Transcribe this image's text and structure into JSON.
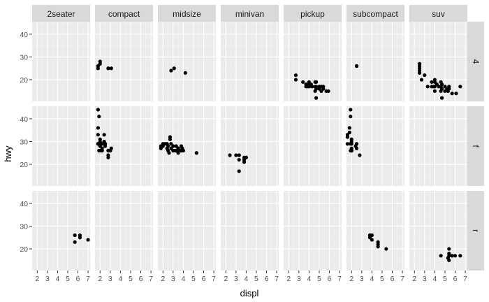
{
  "chart_data": {
    "type": "scatter",
    "facet": "grid",
    "xlabel": "displ",
    "ylabel": "hwy",
    "xlim": [
      1.5,
      7.2
    ],
    "ylim": [
      10.5,
      45.5
    ],
    "x_ticks": [
      2,
      3,
      4,
      5,
      6,
      7
    ],
    "y_ticks": [
      20,
      30,
      40
    ],
    "grid": true,
    "columns": [
      "2seater",
      "compact",
      "midsize",
      "minivan",
      "pickup",
      "subcompact",
      "suv"
    ],
    "rows": [
      "4",
      "f",
      "r"
    ],
    "panels": [
      {
        "row": "4",
        "col": "compact",
        "points": [
          [
            1.8,
            26
          ],
          [
            1.8,
            25
          ],
          [
            2.0,
            28
          ],
          [
            2.0,
            27
          ],
          [
            2.8,
            25
          ],
          [
            2.8,
            25
          ],
          [
            3.1,
            25
          ]
        ]
      },
      {
        "row": "4",
        "col": "midsize",
        "points": [
          [
            2.8,
            24
          ],
          [
            3.1,
            25
          ],
          [
            4.2,
            23
          ]
        ]
      },
      {
        "row": "4",
        "col": "pickup",
        "points": [
          [
            2.7,
            20
          ],
          [
            2.7,
            22
          ],
          [
            3.4,
            19
          ],
          [
            3.7,
            18
          ],
          [
            3.7,
            17
          ],
          [
            3.9,
            17
          ],
          [
            3.9,
            18
          ],
          [
            4.0,
            17
          ],
          [
            4.0,
            18
          ],
          [
            4.0,
            19
          ],
          [
            4.2,
            18
          ],
          [
            4.3,
            17
          ],
          [
            4.6,
            19
          ],
          [
            4.6,
            17
          ],
          [
            4.7,
            17
          ],
          [
            4.7,
            16
          ],
          [
            4.7,
            19
          ],
          [
            4.7,
            12
          ],
          [
            5.2,
            17
          ],
          [
            5.2,
            15
          ],
          [
            5.4,
            17
          ],
          [
            5.7,
            15
          ],
          [
            5.9,
            15
          ],
          [
            4.6,
            15
          ],
          [
            5.0,
            17
          ],
          [
            5.0,
            16
          ],
          [
            5.4,
            16
          ]
        ]
      },
      {
        "row": "4",
        "col": "subcompact",
        "points": [
          [
            2.5,
            26
          ],
          [
            2.5,
            26
          ]
        ]
      },
      {
        "row": "4",
        "col": "suv",
        "points": [
          [
            2.5,
            25
          ],
          [
            2.5,
            24
          ],
          [
            2.5,
            27
          ],
          [
            2.5,
            26
          ],
          [
            2.5,
            23
          ],
          [
            2.7,
            20
          ],
          [
            3.0,
            22
          ],
          [
            3.3,
            17
          ],
          [
            3.7,
            19
          ],
          [
            3.7,
            17
          ],
          [
            3.9,
            17
          ],
          [
            4.0,
            20
          ],
          [
            4.0,
            19
          ],
          [
            4.0,
            17
          ],
          [
            4.2,
            18
          ],
          [
            4.4,
            17
          ],
          [
            4.6,
            19
          ],
          [
            4.6,
            15
          ],
          [
            4.7,
            18
          ],
          [
            4.7,
            16
          ],
          [
            4.7,
            12
          ],
          [
            5.0,
            17
          ],
          [
            5.2,
            16
          ],
          [
            5.3,
            15
          ],
          [
            5.4,
            17
          ],
          [
            5.4,
            16
          ],
          [
            5.7,
            14
          ],
          [
            6.1,
            14
          ],
          [
            6.5,
            17
          ],
          [
            5.0,
            15
          ],
          [
            4.0,
            15
          ],
          [
            4.6,
            17
          ]
        ]
      },
      {
        "row": "f",
        "col": "compact",
        "points": [
          [
            1.8,
            29
          ],
          [
            1.8,
            29
          ],
          [
            2.0,
            31
          ],
          [
            2.0,
            30
          ],
          [
            2.8,
            26
          ],
          [
            2.8,
            26
          ],
          [
            3.1,
            27
          ],
          [
            1.8,
            36
          ],
          [
            1.8,
            44
          ],
          [
            1.9,
            41
          ],
          [
            1.8,
            33
          ],
          [
            2.0,
            28
          ],
          [
            2.0,
            29
          ],
          [
            2.0,
            26
          ],
          [
            2.2,
            27
          ],
          [
            2.4,
            30
          ],
          [
            2.4,
            33
          ],
          [
            3.0,
            26
          ],
          [
            3.0,
            26
          ],
          [
            2.5,
            29
          ],
          [
            2.5,
            29
          ],
          [
            2.8,
            23
          ],
          [
            2.8,
            24
          ],
          [
            2.2,
            26
          ],
          [
            2.0,
            29
          ],
          [
            2.2,
            29
          ],
          [
            1.9,
            29
          ],
          [
            1.9,
            26
          ],
          [
            2.0,
            29
          ],
          [
            2.0,
            29
          ],
          [
            2.0,
            29
          ],
          [
            2.5,
            28
          ]
        ]
      },
      {
        "row": "f",
        "col": "midsize",
        "points": [
          [
            1.8,
            28
          ],
          [
            1.8,
            27
          ],
          [
            2.0,
            29
          ],
          [
            2.0,
            28
          ],
          [
            2.4,
            27
          ],
          [
            2.4,
            29
          ],
          [
            2.5,
            26
          ],
          [
            2.5,
            28
          ],
          [
            2.8,
            29
          ],
          [
            2.8,
            27
          ],
          [
            3.0,
            26
          ],
          [
            3.1,
            26
          ],
          [
            3.3,
            26
          ],
          [
            3.5,
            25
          ],
          [
            3.6,
            26
          ],
          [
            3.8,
            26
          ],
          [
            3.5,
            27
          ],
          [
            3.5,
            26
          ],
          [
            2.2,
            29
          ],
          [
            2.4,
            29
          ],
          [
            2.6,
            25
          ],
          [
            2.7,
            32
          ],
          [
            2.7,
            31
          ],
          [
            3.0,
            26
          ],
          [
            3.0,
            28
          ],
          [
            3.5,
            26
          ],
          [
            3.5,
            26
          ],
          [
            3.8,
            26
          ],
          [
            3.8,
            28
          ],
          [
            4.0,
            26
          ],
          [
            3.3,
            28
          ],
          [
            5.3,
            25
          ],
          [
            3.5,
            27
          ],
          [
            3.9,
            27
          ]
        ]
      },
      {
        "row": "f",
        "col": "minivan",
        "points": [
          [
            2.4,
            24
          ],
          [
            3.0,
            24
          ],
          [
            3.3,
            22
          ],
          [
            3.3,
            24
          ],
          [
            3.3,
            17
          ],
          [
            3.8,
            22
          ],
          [
            3.8,
            21
          ],
          [
            3.8,
            23
          ],
          [
            4.0,
            23
          ],
          [
            3.3,
            24
          ],
          [
            3.8,
            21
          ]
        ]
      },
      {
        "row": "f",
        "col": "subcompact",
        "points": [
          [
            1.6,
            33
          ],
          [
            1.6,
            32
          ],
          [
            1.6,
            32
          ],
          [
            1.6,
            29
          ],
          [
            1.6,
            32
          ],
          [
            1.8,
            34
          ],
          [
            1.8,
            36
          ],
          [
            1.8,
            36
          ],
          [
            2.0,
            29
          ],
          [
            2.0,
            26
          ],
          [
            2.0,
            27
          ],
          [
            2.0,
            30
          ],
          [
            2.0,
            31
          ],
          [
            2.0,
            26
          ],
          [
            2.0,
            26
          ],
          [
            1.9,
            44
          ],
          [
            1.9,
            41
          ],
          [
            1.9,
            29
          ],
          [
            1.9,
            26
          ],
          [
            2.4,
            28
          ],
          [
            2.5,
            29
          ],
          [
            2.5,
            27
          ],
          [
            2.8,
            24
          ]
        ]
      },
      {
        "row": "r",
        "col": "2seater",
        "points": [
          [
            5.7,
            26
          ],
          [
            5.7,
            23
          ],
          [
            6.2,
            26
          ],
          [
            6.2,
            25
          ],
          [
            7.0,
            24
          ]
        ]
      },
      {
        "row": "r",
        "col": "subcompact",
        "points": [
          [
            3.8,
            26
          ],
          [
            3.8,
            25
          ],
          [
            3.8,
            26
          ],
          [
            4.0,
            24
          ],
          [
            4.0,
            26
          ],
          [
            4.6,
            23
          ],
          [
            4.6,
            22
          ],
          [
            4.6,
            21
          ],
          [
            5.4,
            20
          ]
        ]
      },
      {
        "row": "r",
        "col": "suv",
        "points": [
          [
            4.6,
            17
          ],
          [
            5.4,
            17
          ],
          [
            5.4,
            18
          ],
          [
            5.3,
            16
          ],
          [
            5.3,
            16
          ],
          [
            5.4,
            15
          ],
          [
            5.7,
            17
          ],
          [
            5.7,
            17
          ],
          [
            6.0,
            17
          ],
          [
            6.5,
            17
          ],
          [
            5.4,
            20
          ]
        ]
      }
    ]
  }
}
